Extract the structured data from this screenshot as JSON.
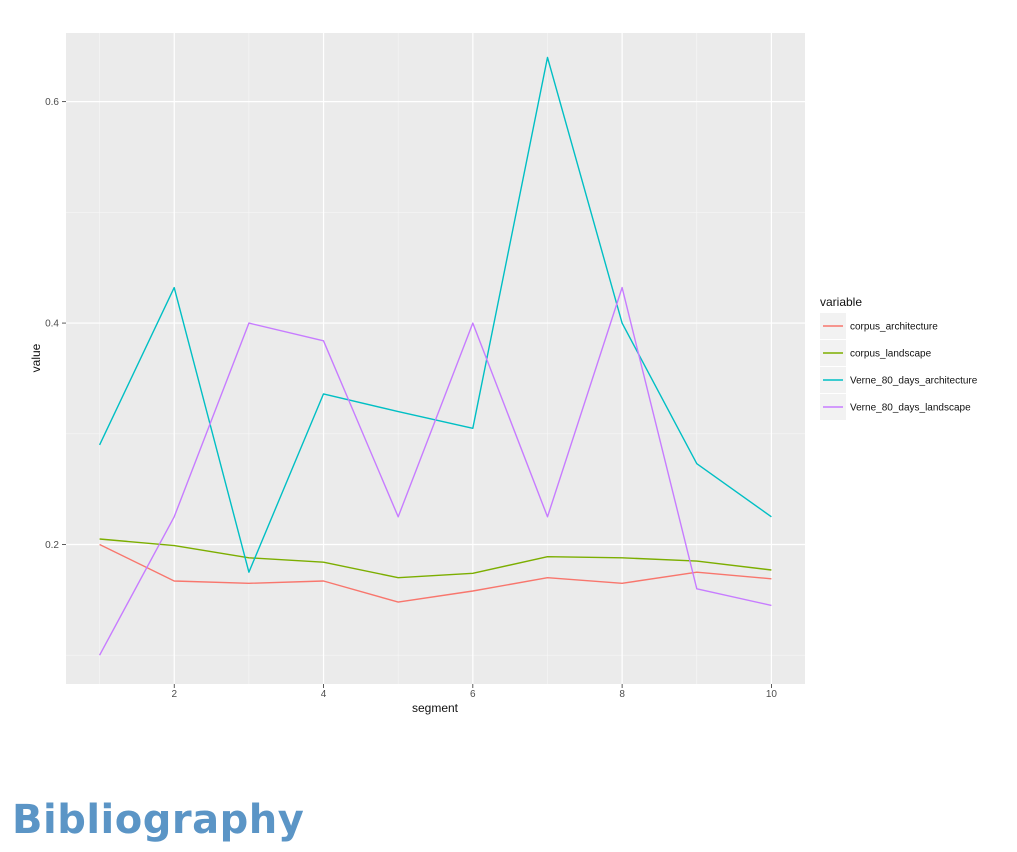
{
  "chart_data": {
    "type": "line",
    "xlabel": "segment",
    "ylabel": "value",
    "x": [
      1,
      2,
      3,
      4,
      5,
      6,
      7,
      8,
      9,
      10
    ],
    "xlim": [
      0.55,
      10.45
    ],
    "ylim": [
      0.074,
      0.662
    ],
    "xticks": [
      2,
      4,
      6,
      8,
      10
    ],
    "xtick_labels": [
      "2",
      "4",
      "6",
      "8",
      "10"
    ],
    "yticks": [
      0.2,
      0.4,
      0.6
    ],
    "ytick_labels": [
      "0.2",
      "0.4",
      "0.6"
    ],
    "grid": true,
    "legend": {
      "title": "variable",
      "position": "right"
    },
    "series": [
      {
        "name": "corpus_architecture",
        "color": "#F8766D",
        "values": [
          0.2,
          0.167,
          0.165,
          0.167,
          0.148,
          0.158,
          0.17,
          0.165,
          0.175,
          0.169
        ]
      },
      {
        "name": "corpus_landscape",
        "color": "#7CAE00",
        "values": [
          0.205,
          0.199,
          0.188,
          0.184,
          0.17,
          0.174,
          0.189,
          0.188,
          0.185,
          0.177
        ]
      },
      {
        "name": "Verne_80_days_architecture",
        "color": "#00BFC4",
        "values": [
          0.29,
          0.432,
          0.175,
          0.336,
          0.32,
          0.305,
          0.64,
          0.4,
          0.273,
          0.225
        ]
      },
      {
        "name": "Verne_80_days_landscape",
        "color": "#C77CFF",
        "values": [
          0.1,
          0.225,
          0.4,
          0.384,
          0.225,
          0.4,
          0.225,
          0.432,
          0.16,
          0.145
        ]
      }
    ]
  },
  "page": {
    "heading": "Bibliography"
  }
}
